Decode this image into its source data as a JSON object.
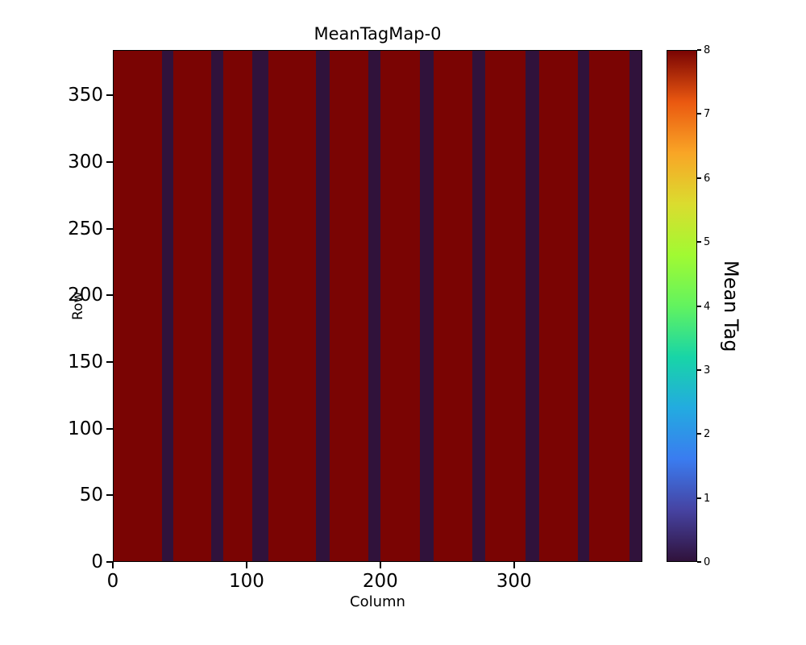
{
  "figure": {
    "title": "MeanTagMap-0",
    "xlabel": "Column",
    "ylabel": "Row",
    "colorbar_label": "Mean Tag"
  },
  "chart_data": {
    "type": "heatmap",
    "title": "MeanTagMap-0",
    "xlabel": "Column",
    "ylabel": "Row",
    "x_range": [
      0,
      396
    ],
    "y_range": [
      0,
      384
    ],
    "xticks": [
      0,
      100,
      200,
      300
    ],
    "yticks": [
      0,
      50,
      100,
      150,
      200,
      250,
      300,
      350
    ],
    "grid": false,
    "legend": "none",
    "colormap": "turbo",
    "background_value": 8,
    "stripe_value": 0,
    "stripes_columns": [
      [
        36,
        45
      ],
      [
        73,
        82
      ],
      [
        104,
        116
      ],
      [
        152,
        162
      ],
      [
        191,
        200
      ],
      [
        230,
        240
      ],
      [
        269,
        279
      ],
      [
        309,
        319
      ],
      [
        348,
        357
      ],
      [
        387,
        396
      ]
    ],
    "colorbar": {
      "label": "Mean Tag",
      "min": 0,
      "max": 8,
      "ticks": [
        0,
        1,
        2,
        3,
        4,
        5,
        6,
        7,
        8
      ]
    },
    "colors": {
      "high": "#7a0403",
      "low": "#30123b"
    },
    "description": "Uniform field at mean tag value 8 (dark red) with vertical columns at value 0 (dark navy) repeating roughly every 39 columns"
  }
}
